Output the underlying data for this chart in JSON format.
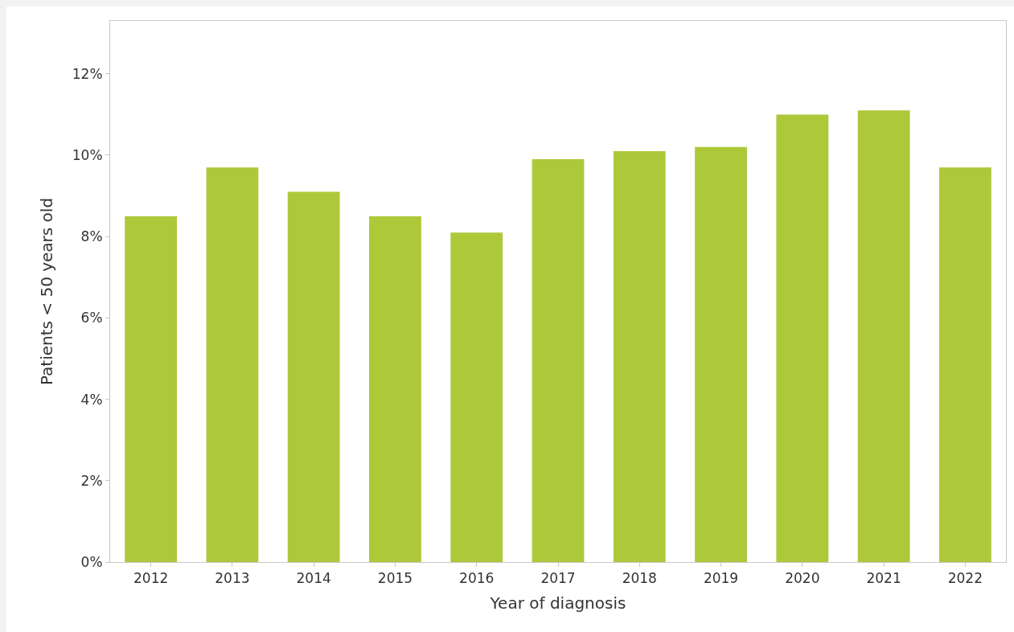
{
  "chart_data": {
    "type": "bar",
    "xlabel": "Year of diagnosis",
    "ylabel": "Patients < 50 years old",
    "categories": [
      "2012",
      "2013",
      "2014",
      "2015",
      "2016",
      "2017",
      "2018",
      "2019",
      "2020",
      "2021",
      "2022"
    ],
    "values": [
      8.5,
      9.7,
      9.1,
      8.5,
      8.1,
      9.9,
      10.1,
      10.2,
      11.0,
      11.1,
      9.7
    ],
    "color": "#adc93a",
    "ylim": [
      0,
      13.3
    ],
    "yticks": [
      {
        "value": 0,
        "label": "0%"
      },
      {
        "value": 2,
        "label": "2%"
      },
      {
        "value": 4,
        "label": "4%"
      },
      {
        "value": 6,
        "label": "6%"
      },
      {
        "value": 8,
        "label": "8%"
      },
      {
        "value": 10,
        "label": "10%"
      },
      {
        "value": 12,
        "label": "12%"
      }
    ],
    "grid": false
  }
}
